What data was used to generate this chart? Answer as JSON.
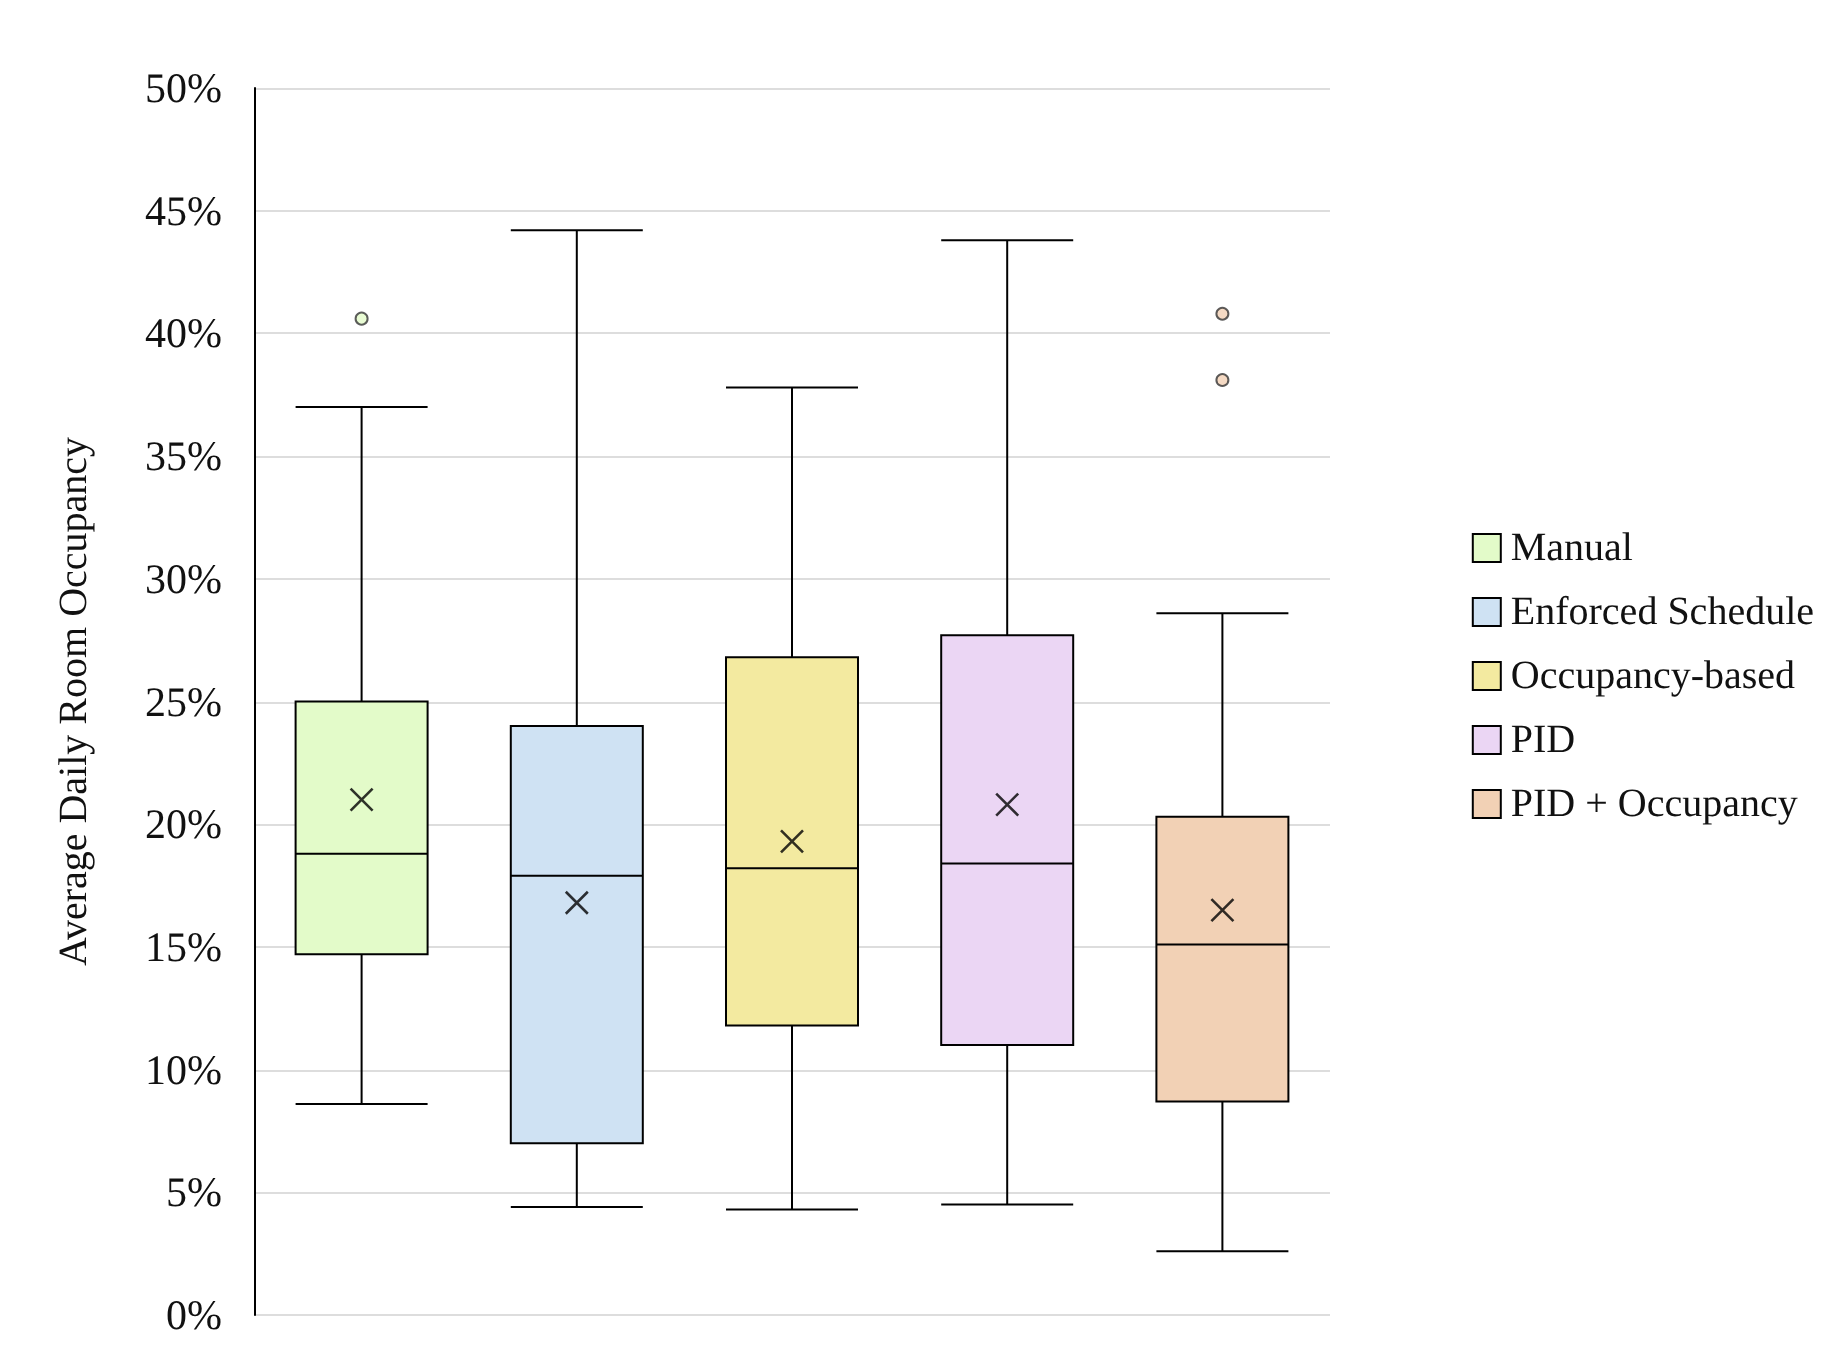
{
  "chart_data": {
    "type": "box",
    "ylabel": "Average Daily Room Occupancy",
    "categories": [
      null,
      null,
      null,
      null,
      null
    ],
    "ylim": [
      0,
      50
    ],
    "yticks": [
      {
        "value": 0,
        "label": "0%"
      },
      {
        "value": 5,
        "label": "5%"
      },
      {
        "value": 10,
        "label": "10%"
      },
      {
        "value": 15,
        "label": "15%"
      },
      {
        "value": 20,
        "label": "20%"
      },
      {
        "value": 25,
        "label": "25%"
      },
      {
        "value": 30,
        "label": "30%"
      },
      {
        "value": 35,
        "label": "35%"
      },
      {
        "value": 40,
        "label": "40%"
      },
      {
        "value": 45,
        "label": "45%"
      },
      {
        "value": 50,
        "label": "50%"
      }
    ],
    "grid": "y",
    "legend": "right",
    "tick_labels": "y",
    "series": [
      {
        "name": "Manual",
        "color": "#e3fbc9",
        "boxes": [
          {
            "low": 8.6,
            "q1": 14.7,
            "median": 18.8,
            "q3": 25.0,
            "high": 37.0,
            "mean": 21.0,
            "outliers": [
              40.6
            ]
          },
          null,
          null,
          null,
          null
        ]
      },
      {
        "name": "Enforced Schedule",
        "color": "#cfe2f3",
        "boxes": [
          null,
          {
            "low": 4.4,
            "q1": 7.0,
            "median": 17.9,
            "q3": 24.0,
            "high": 44.2,
            "mean": 16.8
          },
          null,
          null,
          null
        ]
      },
      {
        "name": "Occupancy-based",
        "color": "#f3eaa0",
        "boxes": [
          null,
          null,
          {
            "low": 4.3,
            "q1": 11.8,
            "median": 18.2,
            "q3": 26.8,
            "high": 37.8,
            "mean": 19.3
          },
          null,
          null
        ]
      },
      {
        "name": "PID",
        "color": "#ebd6f4",
        "boxes": [
          null,
          null,
          null,
          {
            "low": 4.5,
            "q1": 11.0,
            "median": 18.4,
            "q3": 27.7,
            "high": 43.8,
            "mean": 20.8
          },
          null
        ]
      },
      {
        "name": "PID + Occupancy",
        "color": "#f2d1b5",
        "boxes": [
          null,
          null,
          null,
          null,
          {
            "low": 2.6,
            "q1": 8.7,
            "median": 15.1,
            "q3": 20.3,
            "high": 28.6,
            "mean": 16.5,
            "outliers": [
              40.8,
              38.1
            ]
          }
        ]
      }
    ]
  }
}
